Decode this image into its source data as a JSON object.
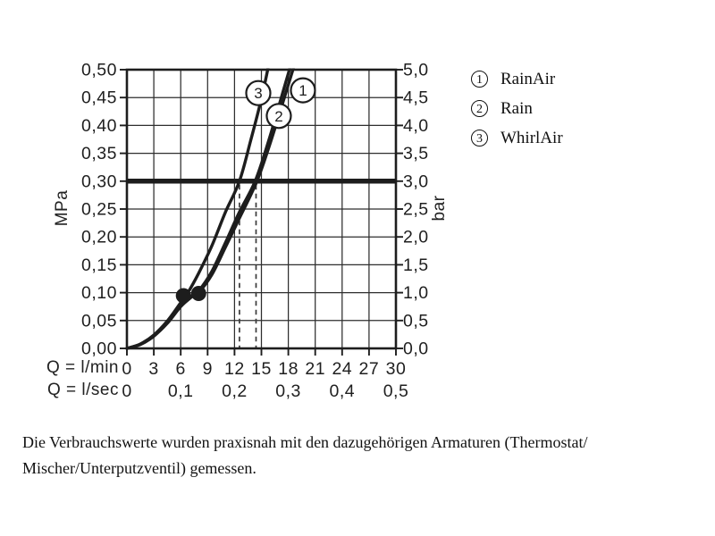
{
  "legend": {
    "items": [
      {
        "number": "1",
        "label": "RainAir"
      },
      {
        "number": "2",
        "label": "Rain"
      },
      {
        "number": "3",
        "label": "WhirlAir"
      }
    ]
  },
  "caption": {
    "line1": "Die Verbrauchswerte wurden praxisnah mit den dazugehörigen Armaturen (Thermostat/",
    "line2": "Mischer/Unterputzventil) gemessen."
  },
  "chart_data": {
    "type": "line",
    "title": "",
    "grid": true,
    "legend_position": "right",
    "colors": {
      "ink": "#1d1d1d",
      "grid": "#2e2e2e",
      "background": "#ffffff"
    },
    "x_axis": {
      "row1_label": "Q = l/min",
      "row2_label": "Q = l/sec",
      "range": [
        0,
        30
      ],
      "gridline_step_lmin": 3,
      "row1_ticks": [
        {
          "q": 0,
          "label": "0"
        },
        {
          "q": 3,
          "label": "3"
        },
        {
          "q": 6,
          "label": "6"
        },
        {
          "q": 9,
          "label": "9"
        },
        {
          "q": 12,
          "label": "12"
        },
        {
          "q": 15,
          "label": "15"
        },
        {
          "q": 18,
          "label": "18"
        },
        {
          "q": 21,
          "label": "21"
        },
        {
          "q": 24,
          "label": "24"
        },
        {
          "q": 27,
          "label": "27"
        },
        {
          "q": 30,
          "label": "30"
        }
      ],
      "row2_ticks": [
        {
          "q": 0,
          "label": "0"
        },
        {
          "q": 6,
          "label": "0,1"
        },
        {
          "q": 12,
          "label": "0,2"
        },
        {
          "q": 18,
          "label": "0,3"
        },
        {
          "q": 24,
          "label": "0,4"
        },
        {
          "q": 30,
          "label": "0,5"
        }
      ]
    },
    "y_axis_left": {
      "label": "MPa",
      "range": [
        0,
        0.5
      ],
      "step": 0.05
    },
    "y_axis_right": {
      "label": "bar",
      "range": [
        0,
        5
      ],
      "step": 0.5
    },
    "y_ticks": [
      {
        "mpa": 0.5,
        "left": "0,50",
        "right": "5,0"
      },
      {
        "mpa": 0.45,
        "left": "0,45",
        "right": "4,5"
      },
      {
        "mpa": 0.4,
        "left": "0,40",
        "right": "4,0"
      },
      {
        "mpa": 0.35,
        "left": "0,35",
        "right": "3,5"
      },
      {
        "mpa": 0.3,
        "left": "0,30",
        "right": "3,0"
      },
      {
        "mpa": 0.25,
        "left": "0,25",
        "right": "2,5"
      },
      {
        "mpa": 0.2,
        "left": "0,20",
        "right": "2,0"
      },
      {
        "mpa": 0.15,
        "left": "0,15",
        "right": "1,5"
      },
      {
        "mpa": 0.1,
        "left": "0,10",
        "right": "1,0"
      },
      {
        "mpa": 0.05,
        "left": "0,05",
        "right": "0,5"
      },
      {
        "mpa": 0.0,
        "left": "0,00",
        "right": "0,0"
      }
    ],
    "reference_line": {
      "mpa": 0.3,
      "bar": 3.0
    },
    "drop_lines_lmin": [
      12.55,
      14.4
    ],
    "junction_markers": [
      {
        "lmin": 6.3,
        "mpa": 0.0945
      },
      {
        "lmin": 8.0,
        "mpa": 0.0985
      }
    ],
    "series": [
      {
        "id": "1",
        "name": "RainAir",
        "points": [
          [
            0,
            0
          ],
          [
            1.5,
            0.007
          ],
          [
            3,
            0.022
          ],
          [
            4.5,
            0.045
          ],
          [
            6,
            0.075
          ],
          [
            7.2,
            0.092
          ],
          [
            8,
            0.1
          ],
          [
            9.5,
            0.133
          ],
          [
            11,
            0.182
          ],
          [
            12.5,
            0.232
          ],
          [
            14.5,
            0.3
          ],
          [
            16,
            0.369
          ],
          [
            17.5,
            0.447
          ],
          [
            18.8,
            0.515
          ]
        ],
        "label_pos": {
          "lmin": 19.63,
          "mpa": 0.463
        }
      },
      {
        "id": "2",
        "name": "Rain",
        "points": [
          [
            0,
            0
          ],
          [
            1.5,
            0.007
          ],
          [
            3,
            0.022
          ],
          [
            4.5,
            0.046
          ],
          [
            6,
            0.077
          ],
          [
            7.2,
            0.094
          ],
          [
            8,
            0.103
          ],
          [
            9.5,
            0.139
          ],
          [
            11,
            0.19
          ],
          [
            12.5,
            0.243
          ],
          [
            14.3,
            0.3
          ],
          [
            15.8,
            0.372
          ],
          [
            17.2,
            0.449
          ],
          [
            18.4,
            0.515
          ]
        ],
        "label_pos": {
          "lmin": 16.94,
          "mpa": 0.417
        }
      },
      {
        "id": "3",
        "name": "WhirlAir",
        "points": [
          [
            0,
            0
          ],
          [
            1.5,
            0.008
          ],
          [
            3,
            0.024
          ],
          [
            4.5,
            0.049
          ],
          [
            6,
            0.082
          ],
          [
            6.8,
            0.1
          ],
          [
            8,
            0.135
          ],
          [
            9.5,
            0.185
          ],
          [
            11,
            0.245
          ],
          [
            12.55,
            0.3
          ],
          [
            13.8,
            0.373
          ],
          [
            15,
            0.448
          ],
          [
            15.9,
            0.515
          ]
        ],
        "label_pos": {
          "lmin": 14.65,
          "mpa": 0.458
        }
      }
    ]
  }
}
